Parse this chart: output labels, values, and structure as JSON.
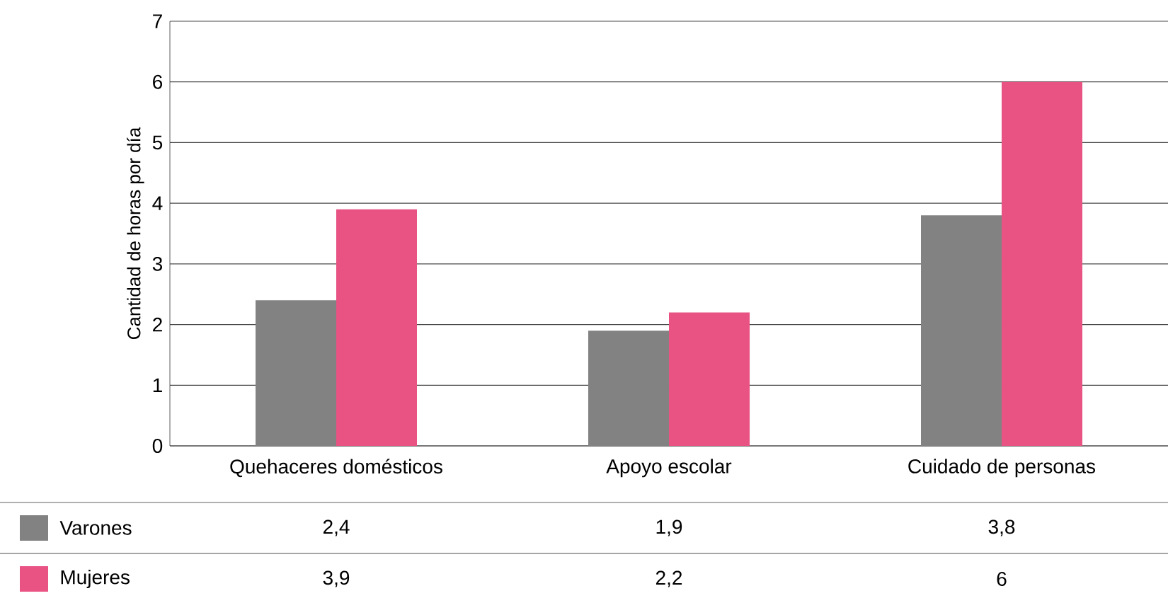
{
  "chart_data": {
    "type": "bar",
    "ylabel": "Cantidad de horas por día",
    "categories": [
      "Quehaceres domésticos",
      "Apoyo escolar",
      "Cuidado de personas"
    ],
    "series": [
      {
        "name": "Varones",
        "color": "#828282",
        "values": [
          2.4,
          1.9,
          3.8
        ],
        "value_labels": [
          "2,4",
          "1,9",
          "3,8"
        ]
      },
      {
        "name": "Mujeres",
        "color": "#e85384",
        "values": [
          3.9,
          2.2,
          6
        ],
        "value_labels": [
          "3,9",
          "2,2",
          "6"
        ]
      }
    ],
    "ylim": [
      0,
      7
    ],
    "yticks": [
      0,
      1,
      2,
      3,
      4,
      5,
      6,
      7
    ],
    "grid": "y",
    "legend": "bottom"
  }
}
